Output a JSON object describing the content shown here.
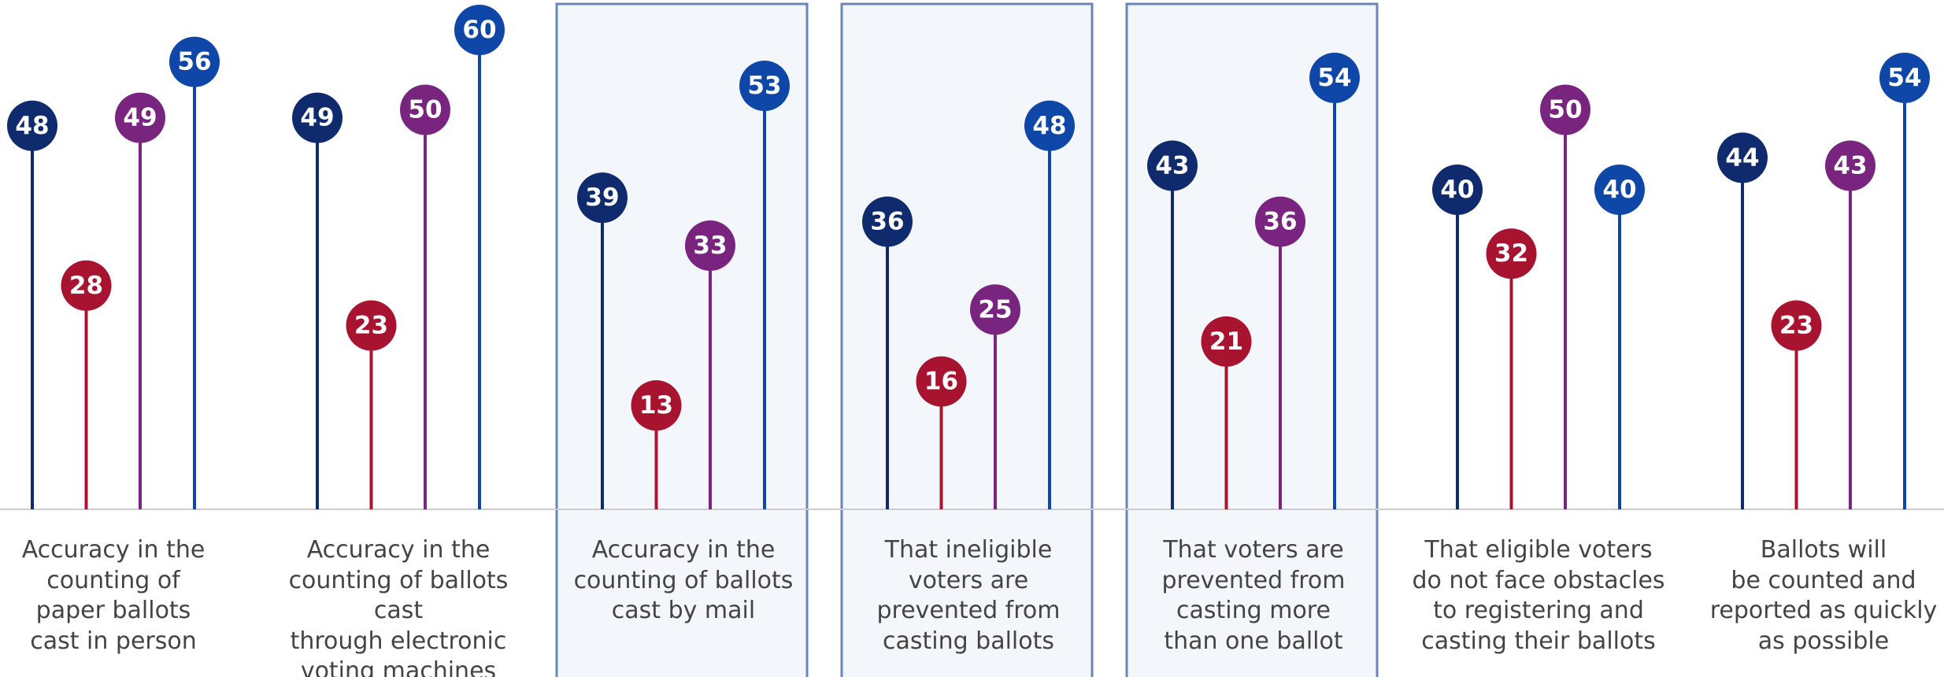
{
  "chart_data": {
    "type": "lollipop",
    "categories": [
      "Accuracy in the\ncounting of\npaper ballots\ncast in person",
      "Accuracy in the\ncounting of ballots cast\nthrough electronic\nvoting machines",
      "Accuracy in the\ncounting of ballots\ncast by mail",
      "That ineligible\nvoters are\nprevented from\ncasting ballots",
      "That voters are\nprevented from\ncasting more\nthan one ballot",
      "That eligible voters\ndo not face obstacles\nto registering and\ncasting their ballots",
      "Ballots will\nbe counted and\nreported as quickly\nas possible"
    ],
    "series": [
      {
        "color": "#0f2b6e",
        "values": [
          48,
          49,
          39,
          36,
          43,
          40,
          44
        ]
      },
      {
        "color": "#a8142f",
        "values": [
          28,
          23,
          13,
          16,
          21,
          32,
          23
        ]
      },
      {
        "color": "#792580",
        "values": [
          49,
          50,
          33,
          25,
          36,
          50,
          43
        ]
      },
      {
        "color": "#0f47a8",
        "values": [
          56,
          60,
          53,
          48,
          54,
          40,
          54
        ]
      }
    ],
    "ylim": [
      0,
      60
    ],
    "highlighted": [
      2,
      3,
      4
    ]
  }
}
